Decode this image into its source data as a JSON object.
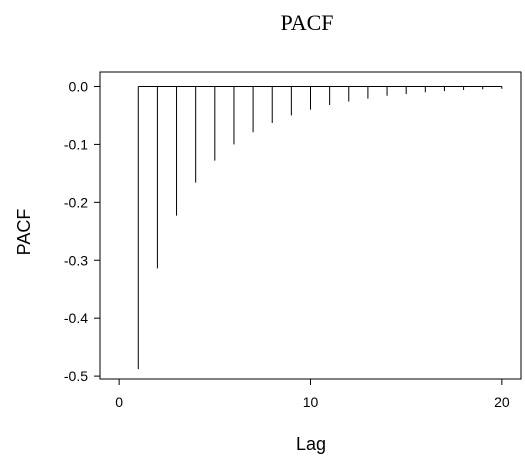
{
  "chart_data": {
    "type": "bar",
    "title": "PACF",
    "xlabel": "Lag",
    "ylabel": "PACF",
    "x": [
      1,
      2,
      3,
      4,
      5,
      6,
      7,
      8,
      9,
      10,
      11,
      12,
      13,
      14,
      15,
      16,
      17,
      18,
      19,
      20
    ],
    "values": [
      -0.488,
      -0.314,
      -0.223,
      -0.166,
      -0.128,
      -0.1,
      -0.079,
      -0.063,
      -0.05,
      -0.04,
      -0.032,
      -0.026,
      -0.021,
      -0.016,
      -0.013,
      -0.01,
      -0.008,
      -0.006,
      -0.005,
      -0.004
    ],
    "xlim": [
      -1,
      21
    ],
    "ylim": [
      -0.505,
      0.025
    ],
    "xticks": [
      0,
      10,
      20
    ],
    "xtick_labels": [
      "0",
      "10",
      "20"
    ],
    "yticks": [
      0.0,
      -0.1,
      -0.2,
      -0.3,
      -0.4,
      -0.5
    ],
    "ytick_labels": [
      "0.0",
      "-0.1",
      "-0.2",
      "-0.3",
      "-0.4",
      "-0.5"
    ],
    "grid": false,
    "legend": "none"
  }
}
